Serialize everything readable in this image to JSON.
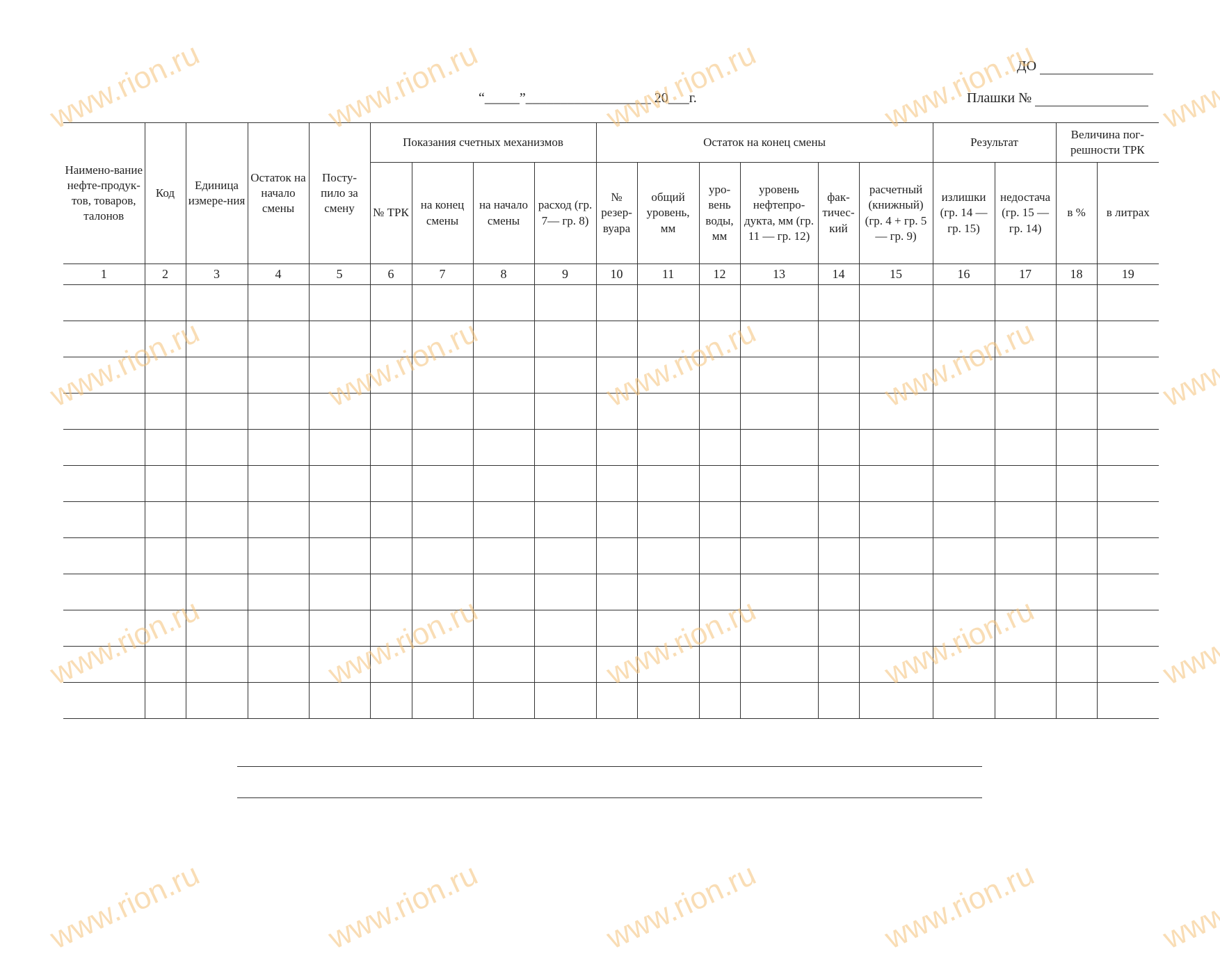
{
  "watermark": "www.rion.ru",
  "header": {
    "do_label": "ДО",
    "do_value": "",
    "date_line": "“_____”__________________  20___г.",
    "plashki_label": "Плашки №",
    "plashki_value": ""
  },
  "table": {
    "group_headers": {
      "counters": "Показания счетных механизмов",
      "remainder_end": "Остаток на конец смены",
      "result": "Результат",
      "error": "Величина пог-решности ТРК"
    },
    "columns": [
      "Наимено-вание нефте-продук-тов, товаров, талонов",
      "Код",
      "Единица измере-ния",
      "Остаток на начало смены",
      "Посту-пило за смену",
      "№ ТРК",
      "на конец смены",
      "на начало смены",
      "расход (гр. 7— гр. 8)",
      "№ резер-вуара",
      "общий уровень, мм",
      "уро-вень воды, мм",
      "уровень нефтепро-дукта, мм (гр. 11 — гр. 12)",
      "фак-тичес-кий",
      "расчетный (книжный) (гр. 4 + гр. 5 — гр. 9)",
      "излишки (гр. 14 — гр. 15)",
      "недостача (гр. 15 — гр. 14)",
      "в %",
      "в литрах"
    ],
    "numbers": [
      "1",
      "2",
      "3",
      "4",
      "5",
      "6",
      "7",
      "8",
      "9",
      "10",
      "11",
      "12",
      "13",
      "14",
      "15",
      "16",
      "17",
      "18",
      "19"
    ],
    "empty_rows": 12
  }
}
